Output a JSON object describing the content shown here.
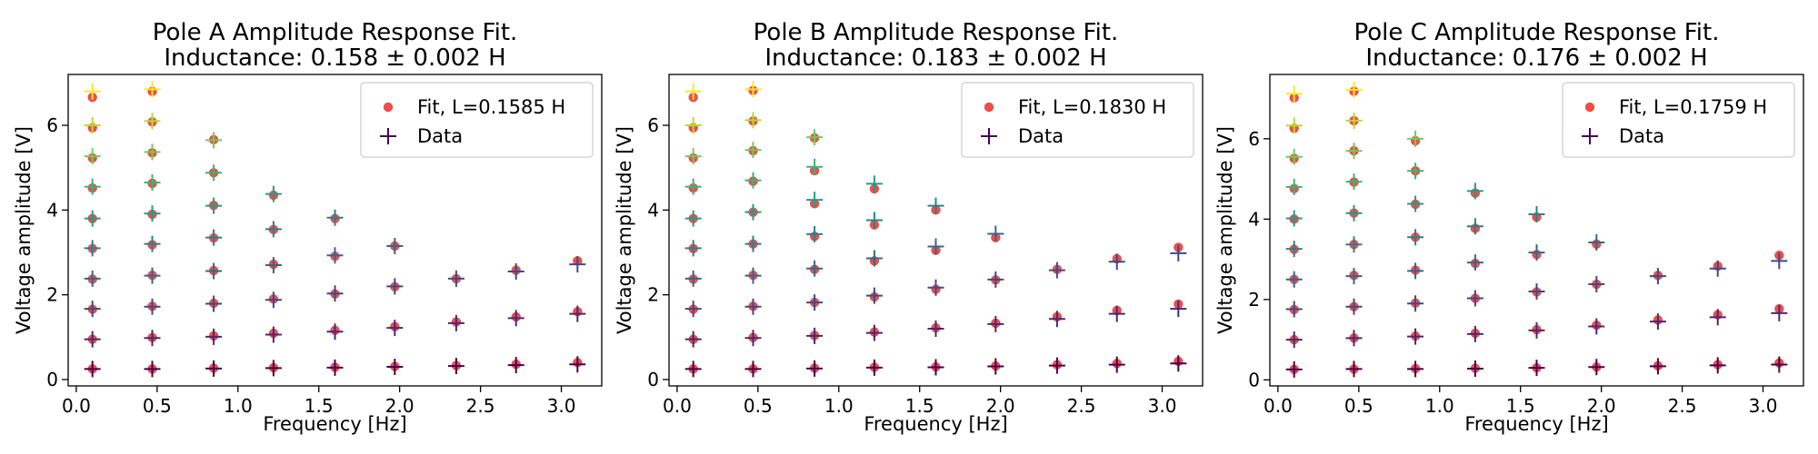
{
  "chart_data": [
    {
      "type": "scatter",
      "title": "Pole A Amplitude Response Fit.",
      "subtitle": "Inductance: 0.158 ± 0.002 H",
      "xlabel": "Frequency [Hz]",
      "ylabel": "Voltage amplitude [V]",
      "xlim": [
        -0.05,
        3.25
      ],
      "ylim": [
        -0.15,
        7.2
      ],
      "xticks": [
        "0.0",
        "0.5",
        "1.0",
        "1.5",
        "2.0",
        "2.5",
        "3.0"
      ],
      "yticks": [
        "0",
        "2",
        "4",
        "6"
      ],
      "grid": false,
      "legend_position": "top-right",
      "legend": [
        "Fit, L=0.1585 H",
        "Data"
      ],
      "x": [
        0.1,
        0.47,
        0.85,
        1.22,
        1.6,
        1.97,
        2.35,
        2.72,
        3.1
      ],
      "series": [
        {
          "name": "Data",
          "values": [
            0.25,
            0.25,
            0.26,
            0.27,
            0.28,
            0.3,
            0.32,
            0.34,
            0.36
          ],
          "color": "#440154"
        },
        {
          "values": [
            0.95,
            0.98,
            1.01,
            1.06,
            1.13,
            1.22,
            1.33,
            1.45,
            1.55
          ],
          "color": "#482878"
        },
        {
          "values": [
            1.67,
            1.72,
            1.79,
            1.88,
            2.03,
            2.2,
            2.38,
            2.55,
            2.72
          ],
          "color": "#3e4989"
        },
        {
          "values": [
            2.38,
            2.45,
            2.56,
            2.7,
            2.93,
            3.15
          ],
          "color": "#31688e"
        },
        {
          "values": [
            3.1,
            3.2,
            3.35,
            3.55,
            3.82
          ],
          "color": "#26828e"
        },
        {
          "values": [
            3.8,
            3.92,
            4.1,
            4.38
          ],
          "color": "#1f9e89"
        },
        {
          "values": [
            4.55,
            4.65,
            4.88
          ],
          "color": "#35b779"
        },
        {
          "values": [
            5.27,
            5.37,
            5.65
          ],
          "color": "#6ece58"
        },
        {
          "values": [
            6.0,
            6.1
          ],
          "color": "#b5de2b"
        },
        {
          "values": [
            6.8,
            6.85
          ],
          "color": "#fde725"
        }
      ],
      "fit": {
        "name": "Fit, L=0.1585 H",
        "color": "#e8302a",
        "values": [
          [
            0.25,
            0.25,
            0.27,
            0.28,
            0.29,
            0.31,
            0.33,
            0.36,
            0.4
          ],
          [
            0.95,
            0.99,
            1.03,
            1.09,
            1.16,
            1.25,
            1.36,
            1.48,
            1.6
          ],
          [
            1.66,
            1.73,
            1.8,
            1.9,
            2.02,
            2.19,
            2.38,
            2.58,
            2.8
          ],
          [
            2.37,
            2.46,
            2.57,
            2.72,
            2.91,
            3.15
          ],
          [
            3.09,
            3.18,
            3.34,
            3.54,
            3.8
          ],
          [
            3.8,
            3.9,
            4.11,
            4.35
          ],
          [
            4.52,
            4.63,
            4.88
          ],
          [
            5.23,
            5.35,
            5.66
          ],
          [
            5.94,
            6.08
          ],
          [
            6.66,
            6.8
          ]
        ]
      }
    },
    {
      "type": "scatter",
      "title": "Pole B Amplitude Response Fit.",
      "subtitle": "Inductance: 0.183 ± 0.002 H",
      "xlabel": "Frequency [Hz]",
      "ylabel": "Voltage amplitude [V]",
      "xlim": [
        -0.05,
        3.25
      ],
      "ylim": [
        -0.15,
        7.2
      ],
      "xticks": [
        "0.0",
        "0.5",
        "1.0",
        "1.5",
        "2.0",
        "2.5",
        "3.0"
      ],
      "yticks": [
        "0",
        "2",
        "4",
        "6"
      ],
      "grid": false,
      "legend_position": "top-right",
      "legend": [
        "Fit, L=0.1830 H",
        "Data"
      ],
      "x": [
        0.1,
        0.47,
        0.85,
        1.22,
        1.6,
        1.97,
        2.35,
        2.72,
        3.1
      ],
      "series": [
        {
          "name": "Data",
          "values": [
            0.25,
            0.25,
            0.26,
            0.28,
            0.29,
            0.31,
            0.33,
            0.35,
            0.38
          ],
          "color": "#440154"
        },
        {
          "values": [
            0.95,
            0.98,
            1.03,
            1.1,
            1.2,
            1.31,
            1.43,
            1.55,
            1.67
          ],
          "color": "#482878"
        },
        {
          "values": [
            1.67,
            1.72,
            1.82,
            1.98,
            2.17,
            2.36,
            2.58,
            2.78,
            2.98
          ],
          "color": "#3e4989"
        },
        {
          "values": [
            2.38,
            2.45,
            2.62,
            2.86,
            3.14,
            3.44
          ],
          "color": "#31688e"
        },
        {
          "values": [
            3.1,
            3.2,
            3.43,
            3.76,
            4.1
          ],
          "color": "#26828e"
        },
        {
          "values": [
            3.8,
            3.95,
            4.24,
            4.62
          ],
          "color": "#1f9e89"
        },
        {
          "values": [
            4.55,
            4.7,
            5.02
          ],
          "color": "#35b779"
        },
        {
          "values": [
            5.27,
            5.42,
            5.72
          ],
          "color": "#6ece58"
        },
        {
          "values": [
            6.0,
            6.12
          ],
          "color": "#b5de2b"
        },
        {
          "values": [
            6.8,
            6.85
          ],
          "color": "#fde725"
        }
      ],
      "fit": {
        "name": "Fit, L=0.1830 H",
        "color": "#e8302a",
        "values": [
          [
            0.25,
            0.25,
            0.27,
            0.29,
            0.3,
            0.32,
            0.35,
            0.38,
            0.43
          ],
          [
            0.95,
            0.99,
            1.04,
            1.12,
            1.22,
            1.33,
            1.48,
            1.63,
            1.78
          ],
          [
            1.66,
            1.73,
            1.82,
            1.95,
            2.13,
            2.35,
            2.6,
            2.85,
            3.12
          ],
          [
            2.37,
            2.46,
            2.6,
            2.8,
            3.05,
            3.35
          ],
          [
            3.09,
            3.2,
            3.38,
            3.65,
            4.0
          ],
          [
            3.8,
            3.95,
            4.15,
            4.5
          ],
          [
            4.52,
            4.68,
            4.93
          ],
          [
            5.23,
            5.4,
            5.7
          ],
          [
            5.94,
            6.1
          ],
          [
            6.66,
            6.82
          ]
        ]
      }
    },
    {
      "type": "scatter",
      "title": "Pole C Amplitude Response Fit.",
      "subtitle": "Inductance: 0.176 ± 0.002 H",
      "xlabel": "Frequency [Hz]",
      "ylabel": "Voltage amplitude [V]",
      "xlim": [
        -0.05,
        3.25
      ],
      "ylim": [
        -0.15,
        7.6
      ],
      "xticks": [
        "0.0",
        "0.5",
        "1.0",
        "1.5",
        "2.0",
        "2.5",
        "3.0"
      ],
      "yticks": [
        "0",
        "2",
        "4",
        "6"
      ],
      "grid": false,
      "legend_position": "top-right",
      "legend": [
        "Fit, L=0.1759 H",
        "Data"
      ],
      "x": [
        0.1,
        0.47,
        0.85,
        1.22,
        1.6,
        1.97,
        2.35,
        2.72,
        3.1
      ],
      "series": [
        {
          "name": "Data",
          "values": [
            0.26,
            0.27,
            0.27,
            0.28,
            0.3,
            0.32,
            0.34,
            0.36,
            0.38
          ],
          "color": "#440154"
        },
        {
          "values": [
            1.0,
            1.04,
            1.08,
            1.14,
            1.23,
            1.33,
            1.45,
            1.56,
            1.66
          ],
          "color": "#482878"
        },
        {
          "values": [
            1.76,
            1.82,
            1.9,
            2.03,
            2.2,
            2.38,
            2.58,
            2.77,
            2.96
          ],
          "color": "#3e4989"
        },
        {
          "values": [
            2.5,
            2.58,
            2.71,
            2.92,
            3.17,
            3.42
          ],
          "color": "#31688e"
        },
        {
          "values": [
            3.26,
            3.37,
            3.55,
            3.82,
            4.12
          ],
          "color": "#26828e"
        },
        {
          "values": [
            4.02,
            4.15,
            4.38,
            4.7
          ],
          "color": "#1f9e89"
        },
        {
          "values": [
            4.8,
            4.93,
            5.2
          ],
          "color": "#35b779"
        },
        {
          "values": [
            5.55,
            5.7,
            6.0
          ],
          "color": "#6ece58"
        },
        {
          "values": [
            6.33,
            6.45
          ],
          "color": "#b5de2b"
        },
        {
          "values": [
            7.12,
            7.22
          ],
          "color": "#fde725"
        }
      ],
      "fit": {
        "name": "Fit, L=0.1759 H",
        "color": "#e8302a",
        "values": [
          [
            0.26,
            0.27,
            0.28,
            0.29,
            0.3,
            0.32,
            0.35,
            0.38,
            0.42
          ],
          [
            1.0,
            1.04,
            1.09,
            1.16,
            1.25,
            1.36,
            1.49,
            1.62,
            1.77
          ],
          [
            1.75,
            1.82,
            1.91,
            2.03,
            2.19,
            2.38,
            2.6,
            2.83,
            3.1
          ],
          [
            2.5,
            2.6,
            2.73,
            2.9,
            3.12,
            3.38
          ],
          [
            3.25,
            3.37,
            3.55,
            3.77,
            4.05
          ],
          [
            4.0,
            4.15,
            4.37,
            4.65
          ],
          [
            4.76,
            4.92,
            5.2
          ],
          [
            5.51,
            5.7,
            5.95
          ],
          [
            6.26,
            6.45
          ],
          [
            7.02,
            7.18
          ]
        ]
      }
    }
  ]
}
